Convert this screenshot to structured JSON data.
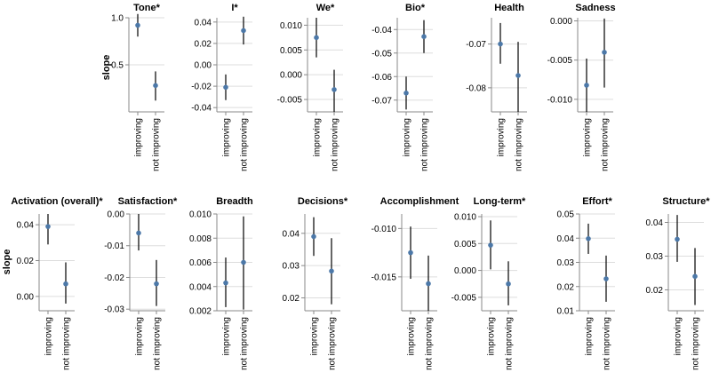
{
  "colors": {
    "point": "#4c78a8",
    "errorbar": "#000000",
    "grid": "#dddddd",
    "axis": "#888888"
  },
  "chart_data": {
    "type": "scatter",
    "categories": [
      "improving",
      "not improving"
    ],
    "ylabel": "slope",
    "grid": true,
    "panels": [
      {
        "title": "Tone*",
        "ylim": [
          0.0,
          1.0
        ],
        "ticks": [
          0.5,
          1.0
        ],
        "tick_labels": [
          "0.5",
          "1.0"
        ],
        "means": [
          0.92,
          0.28
        ],
        "lows": [
          0.8,
          0.12
        ],
        "highs": [
          1.04,
          0.43
        ]
      },
      {
        "title": "I*",
        "ylim": [
          -0.044,
          0.044
        ],
        "ticks": [
          -0.04,
          -0.02,
          0.0,
          0.02,
          0.04
        ],
        "tick_labels": [
          "-0.04",
          "-0.02",
          "0.00",
          "0.02",
          "0.04"
        ],
        "means": [
          -0.021,
          0.032
        ],
        "lows": [
          -0.033,
          0.019
        ],
        "highs": [
          -0.009,
          0.045
        ]
      },
      {
        "title": "We*",
        "ylim": [
          -0.0075,
          0.0115
        ],
        "ticks": [
          -0.005,
          0.0,
          0.005,
          0.01
        ],
        "tick_labels": [
          "-0.005",
          "0.000",
          "0.005",
          "0.010"
        ],
        "means": [
          0.0075,
          -0.003
        ],
        "lows": [
          0.0035,
          -0.0075
        ],
        "highs": [
          0.0115,
          0.001
        ]
      },
      {
        "title": "Bio*",
        "ylim": [
          -0.075,
          -0.035
        ],
        "ticks": [
          -0.07,
          -0.06,
          -0.05,
          -0.04
        ],
        "tick_labels": [
          "-0.07",
          "-0.06",
          "-0.05",
          "-0.04"
        ],
        "means": [
          -0.067,
          -0.043
        ],
        "lows": [
          -0.074,
          -0.05
        ],
        "highs": [
          -0.06,
          -0.036
        ]
      },
      {
        "title": "Health",
        "ylim": [
          -0.0855,
          -0.064
        ],
        "ticks": [
          -0.08,
          -0.07
        ],
        "tick_labels": [
          "-0.08",
          "-0.07"
        ],
        "means": [
          -0.07,
          -0.0772
        ],
        "lows": [
          -0.0745,
          -0.0855
        ],
        "highs": [
          -0.0652,
          -0.0695
        ]
      },
      {
        "title": "Sadness",
        "ylim": [
          -0.0116,
          0.0004
        ],
        "ticks": [
          -0.01,
          -0.005,
          0.0
        ],
        "tick_labels": [
          "-0.010",
          "-0.005",
          "0.000"
        ],
        "means": [
          -0.0082,
          -0.004
        ],
        "lows": [
          -0.0116,
          -0.0085
        ],
        "highs": [
          -0.0048,
          0.0003
        ]
      },
      {
        "title": "Activation (overall)*",
        "ylim": [
          -0.008,
          0.046
        ],
        "ticks": [
          0.0,
          0.02,
          0.04
        ],
        "tick_labels": [
          "0.00",
          "0.02",
          "0.04"
        ],
        "means": [
          0.039,
          0.007
        ],
        "lows": [
          0.029,
          -0.004
        ],
        "highs": [
          0.046,
          0.019
        ]
      },
      {
        "title": "Satisfaction*",
        "ylim": [
          -0.0305,
          0.0
        ],
        "ticks": [
          -0.03,
          -0.02,
          -0.01,
          0.0
        ],
        "tick_labels": [
          "-0.03",
          "-0.02",
          "-0.01",
          "0.00"
        ],
        "means": [
          -0.006,
          -0.022
        ],
        "lows": [
          -0.0115,
          -0.029
        ],
        "highs": [
          0.0,
          -0.0145
        ]
      },
      {
        "title": "Breadth",
        "ylim": [
          0.002,
          0.01
        ],
        "ticks": [
          0.002,
          0.004,
          0.006,
          0.008,
          0.01
        ],
        "tick_labels": [
          "0.002",
          "0.004",
          "0.006",
          "0.008",
          "0.010"
        ],
        "means": [
          0.0043,
          0.006
        ],
        "lows": [
          0.0023,
          0.0021
        ],
        "highs": [
          0.0064,
          0.0098
        ]
      },
      {
        "title": "Decisions*",
        "ylim": [
          0.016,
          0.046
        ],
        "ticks": [
          0.02,
          0.03,
          0.04
        ],
        "tick_labels": [
          "0.02",
          "0.03",
          "0.04"
        ],
        "means": [
          0.039,
          0.0283
        ],
        "lows": [
          0.033,
          0.018
        ],
        "highs": [
          0.045,
          0.0385
        ]
      },
      {
        "title": "Accomplishment",
        "ylim": [
          -0.0185,
          -0.0085
        ],
        "ticks": [
          -0.015,
          -0.01
        ],
        "tick_labels": [
          "-0.015",
          "-0.010"
        ],
        "means": [
          -0.0125,
          -0.0157
        ],
        "lows": [
          -0.0152,
          -0.0185
        ],
        "highs": [
          -0.0098,
          -0.0128
        ]
      },
      {
        "title": "Long-term*",
        "ylim": [
          -0.0075,
          0.0105
        ],
        "ticks": [
          -0.005,
          0.0,
          0.005,
          0.01
        ],
        "tick_labels": [
          "-0.005",
          "0.000",
          "0.005",
          "0.010"
        ],
        "means": [
          0.0047,
          -0.0025
        ],
        "lows": [
          0.0002,
          -0.0065
        ],
        "highs": [
          0.0093,
          0.0017
        ]
      },
      {
        "title": "Effort*",
        "ylim": [
          0.01,
          0.05
        ],
        "ticks": [
          0.01,
          0.02,
          0.03,
          0.04,
          0.05
        ],
        "tick_labels": [
          "0.01",
          "0.02",
          "0.03",
          "0.04",
          "0.05"
        ],
        "means": [
          0.0398,
          0.0232
        ],
        "lows": [
          0.0335,
          0.0137
        ],
        "highs": [
          0.046,
          0.0328
        ]
      },
      {
        "title": "Structure*",
        "ylim": [
          0.0138,
          0.0425
        ],
        "ticks": [
          0.02,
          0.03,
          0.04
        ],
        "tick_labels": [
          "0.02",
          "0.03",
          "0.04"
        ],
        "means": [
          0.035,
          0.024
        ],
        "lows": [
          0.0283,
          0.0155
        ],
        "highs": [
          0.0422,
          0.0324
        ]
      }
    ]
  }
}
